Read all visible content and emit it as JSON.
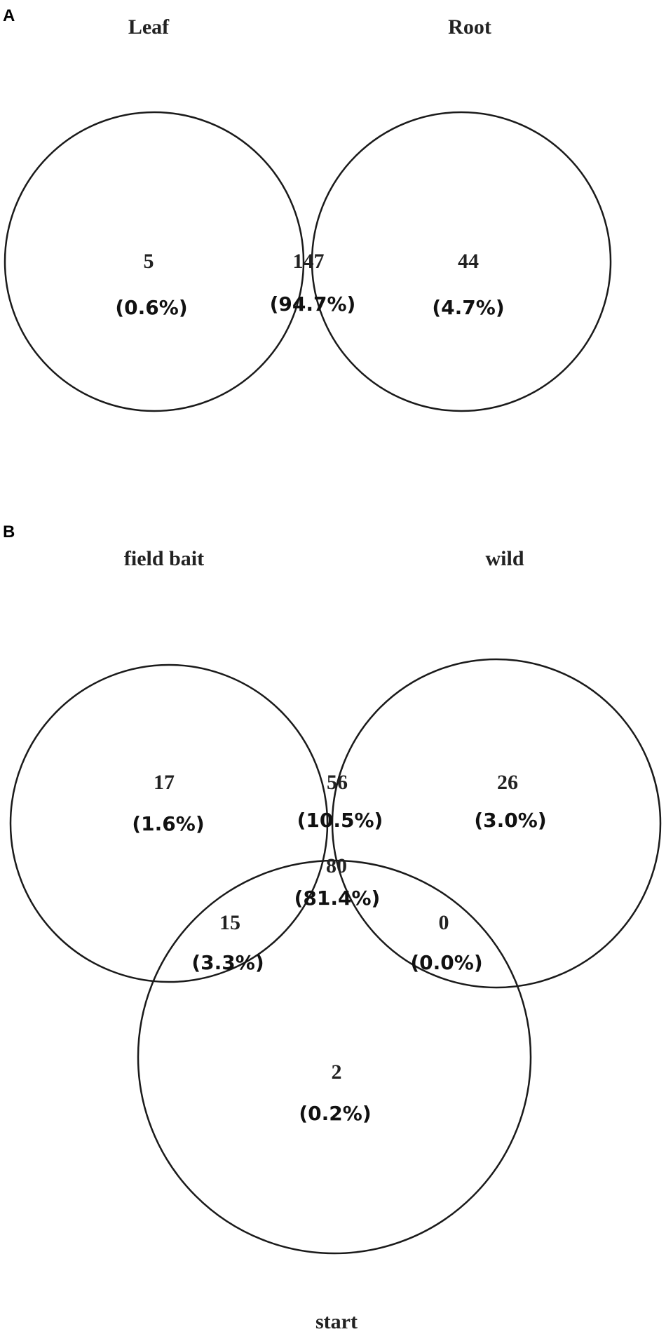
{
  "panels": [
    {
      "letter": "A",
      "sets": [
        "Leaf",
        "Root"
      ],
      "regions": [
        {
          "id": "leaf_only",
          "count": "5",
          "pct": "(0.6%)"
        },
        {
          "id": "leaf_root",
          "count": "147",
          "pct": "(94.7%)"
        },
        {
          "id": "root_only",
          "count": "44",
          "pct": "(4.7%)"
        }
      ]
    },
    {
      "letter": "B",
      "sets": [
        "field bait",
        "wild",
        "start"
      ],
      "regions": [
        {
          "id": "fieldbait_only",
          "count": "17",
          "pct": "(1.6%)"
        },
        {
          "id": "fieldbait_wild",
          "count": "56",
          "pct": "(10.5%)"
        },
        {
          "id": "wild_only",
          "count": "26",
          "pct": "(3.0%)"
        },
        {
          "id": "all_three",
          "count": "80",
          "pct": "(81.4%)"
        },
        {
          "id": "fieldbait_start",
          "count": "15",
          "pct": "(3.3%)"
        },
        {
          "id": "wild_start",
          "count": "0",
          "pct": "(0.0%)"
        },
        {
          "id": "start_only",
          "count": "2",
          "pct": "(0.2%)"
        }
      ]
    }
  ]
}
